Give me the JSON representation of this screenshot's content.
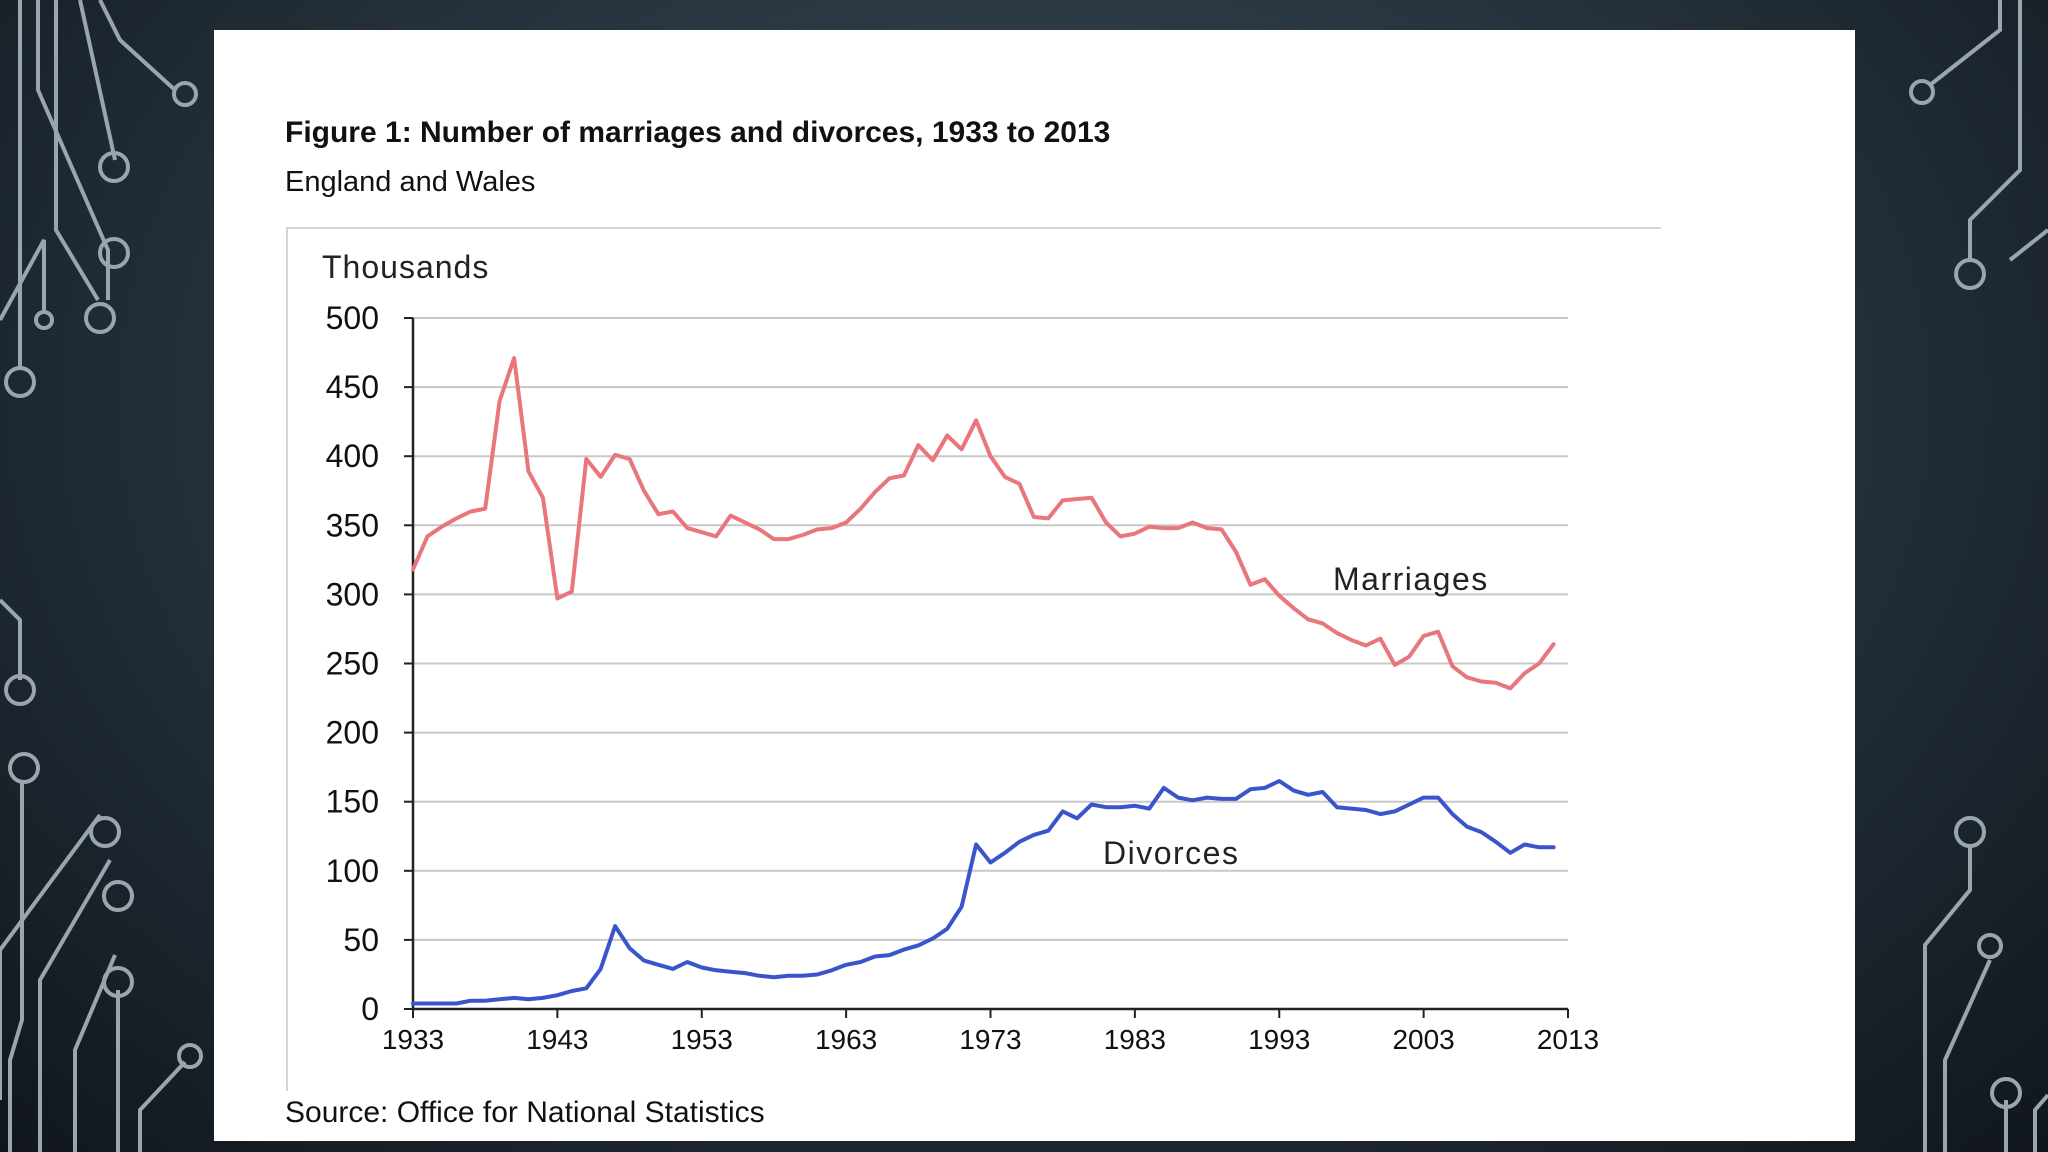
{
  "colors": {
    "marriages": "#e8767a",
    "divorces": "#3a55cc",
    "grid": "#c8c8c8",
    "axis": "#222222",
    "circuit": "#9aa6ae"
  },
  "figure": {
    "title": "Figure 1: Number of marriages and divorces, 1933 to 2013",
    "subtitle": "England and Wales",
    "source": "Source: Office for National Statistics"
  },
  "chart_data": {
    "type": "line",
    "ylabel": "Thousands",
    "xlabel": "",
    "xlim": [
      1933,
      2013
    ],
    "ylim": [
      0,
      500
    ],
    "grid": true,
    "x_ticks": [
      "1933",
      "1943",
      "1953",
      "1963",
      "1973",
      "1983",
      "1993",
      "2003",
      "2013"
    ],
    "y_ticks": [
      "0",
      "50",
      "100",
      "150",
      "200",
      "250",
      "300",
      "350",
      "400",
      "450",
      "500"
    ],
    "x": [
      1933,
      1934,
      1935,
      1936,
      1937,
      1938,
      1939,
      1940,
      1941,
      1942,
      1943,
      1944,
      1945,
      1946,
      1947,
      1948,
      1949,
      1950,
      1951,
      1952,
      1953,
      1954,
      1955,
      1956,
      1957,
      1958,
      1959,
      1960,
      1961,
      1962,
      1963,
      1964,
      1965,
      1966,
      1967,
      1968,
      1969,
      1970,
      1971,
      1972,
      1973,
      1974,
      1975,
      1976,
      1977,
      1978,
      1979,
      1980,
      1981,
      1982,
      1983,
      1984,
      1985,
      1986,
      1987,
      1988,
      1989,
      1990,
      1991,
      1992,
      1993,
      1994,
      1995,
      1996,
      1997,
      1998,
      1999,
      2000,
      2001,
      2002,
      2003,
      2004,
      2005,
      2006,
      2007,
      2008,
      2009,
      2010,
      2011,
      2012
    ],
    "series": [
      {
        "name": "Marriages",
        "values": [
          318,
          342,
          349,
          355,
          360,
          362,
          440,
          471,
          389,
          370,
          297,
          302,
          398,
          385,
          401,
          398,
          375,
          358,
          360,
          348,
          345,
          342,
          357,
          352,
          347,
          340,
          340,
          343,
          347,
          348,
          352,
          362,
          374,
          384,
          386,
          408,
          397,
          415,
          405,
          426,
          400,
          385,
          380,
          356,
          355,
          368,
          369,
          370,
          352,
          342,
          344,
          349,
          348,
          348,
          352,
          348,
          347,
          331,
          307,
          311,
          299,
          290,
          282,
          279,
          272,
          267,
          263,
          268,
          249,
          255,
          270,
          273,
          248,
          240,
          237,
          236,
          232,
          243,
          250,
          264
        ]
      },
      {
        "name": "Divorces",
        "values": [
          4,
          4,
          4,
          4,
          6,
          6,
          7,
          8,
          7,
          8,
          10,
          13,
          15,
          29,
          60,
          44,
          35,
          32,
          29,
          34,
          30,
          28,
          27,
          26,
          24,
          23,
          24,
          24,
          25,
          28,
          32,
          34,
          38,
          39,
          43,
          46,
          51,
          58,
          74,
          119,
          106,
          113,
          121,
          126,
          129,
          143,
          138,
          148,
          146,
          146,
          147,
          145,
          160,
          153,
          151,
          153,
          152,
          152,
          159,
          160,
          165,
          158,
          155,
          157,
          146,
          145,
          144,
          141,
          143,
          148,
          153,
          153,
          141,
          132,
          128,
          121,
          113,
          119,
          117,
          117
        ]
      }
    ],
    "annotations": [
      "Marriages",
      "Divorces"
    ]
  }
}
